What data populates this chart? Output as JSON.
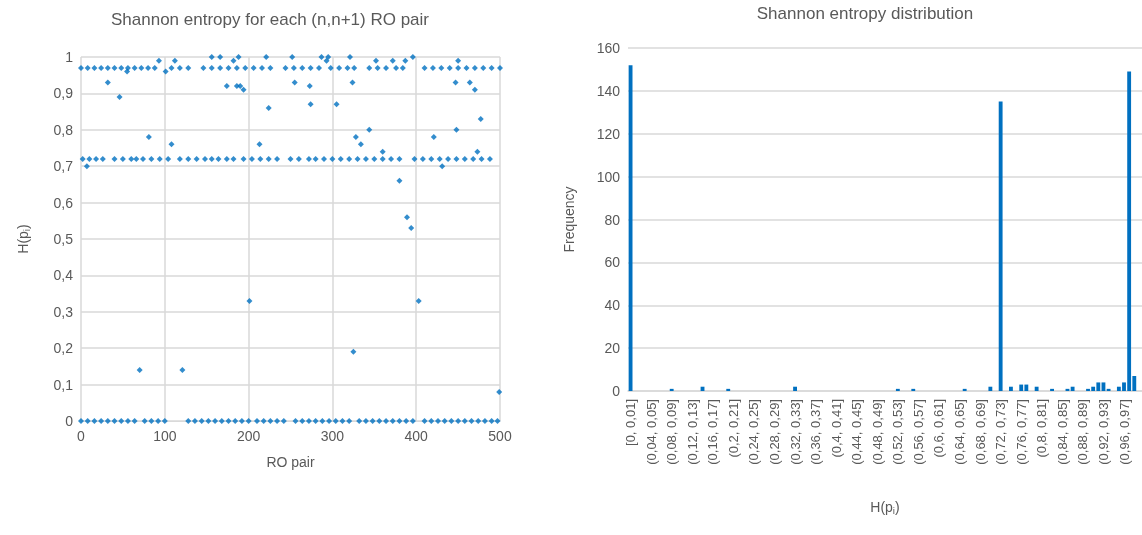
{
  "chart_data": [
    {
      "type": "scatter",
      "title": "Shannon entropy for each (n,n+1) RO pair",
      "xlabel": "RO pair",
      "ylabel": "H(p$_{i}$)",
      "color": "#0070c0",
      "marker": "diamond",
      "grid": true,
      "xlim": [
        0,
        500
      ],
      "xticks": [
        0,
        100,
        200,
        300,
        400,
        500
      ],
      "ylim": [
        0,
        1
      ],
      "yticks": [
        0,
        {
          "value": 0.1,
          "label": "0,1"
        },
        {
          "value": 0.2,
          "label": "0,2"
        },
        {
          "value": 0.3,
          "label": "0,3"
        },
        {
          "value": 0.4,
          "label": "0,4"
        },
        {
          "value": 0.5,
          "label": "0,5"
        },
        {
          "value": 0.6,
          "label": "0,6"
        },
        {
          "value": 0.7,
          "label": "0,7"
        },
        {
          "value": 0.8,
          "label": "0,8"
        },
        {
          "value": 0.9,
          "label": "0,9"
        },
        1
      ],
      "x": [
        2,
        10,
        18,
        26,
        40,
        50,
        60,
        66,
        74,
        84,
        94,
        104,
        118,
        128,
        138,
        148,
        156,
        164,
        174,
        182,
        194,
        204,
        214,
        224,
        234,
        250,
        260,
        272,
        280,
        290,
        300,
        310,
        320,
        330,
        340,
        350,
        360,
        370,
        380,
        398,
        408,
        418,
        428,
        438,
        448,
        458,
        468,
        478,
        488,
        0,
        8,
        16,
        24,
        32,
        40,
        48,
        56,
        64,
        72,
        80,
        88,
        108,
        118,
        128,
        146,
        156,
        166,
        176,
        186,
        196,
        206,
        216,
        226,
        244,
        254,
        264,
        274,
        284,
        298,
        308,
        318,
        326,
        344,
        354,
        364,
        376,
        384,
        410,
        420,
        430,
        440,
        450,
        460,
        470,
        480,
        490,
        500,
        0,
        8,
        16,
        24,
        32,
        40,
        48,
        56,
        64,
        76,
        84,
        92,
        100,
        128,
        136,
        144,
        152,
        160,
        168,
        176,
        184,
        192,
        200,
        210,
        218,
        226,
        234,
        242,
        256,
        264,
        272,
        280,
        288,
        296,
        304,
        312,
        320,
        332,
        340,
        348,
        356,
        364,
        372,
        380,
        388,
        396,
        410,
        418,
        426,
        434,
        442,
        450,
        458,
        466,
        474,
        482,
        490,
        497,
        32,
        46,
        81,
        93,
        101,
        112,
        108,
        55,
        156,
        166,
        182,
        188,
        174,
        186,
        190,
        194,
        224,
        213,
        221,
        252,
        255,
        273,
        274,
        287,
        295,
        293,
        305,
        321,
        324,
        328,
        334,
        344,
        360,
        352,
        372,
        387,
        396,
        421,
        448,
        450,
        447,
        464,
        470,
        477,
        473,
        7,
        431,
        380,
        389,
        394,
        201,
        403,
        325,
        70,
        121,
        499
      ],
      "values": [
        0.72,
        0.72,
        0.72,
        0.72,
        0.72,
        0.72,
        0.72,
        0.72,
        0.72,
        0.72,
        0.72,
        0.72,
        0.72,
        0.72,
        0.72,
        0.72,
        0.72,
        0.72,
        0.72,
        0.72,
        0.72,
        0.72,
        0.72,
        0.72,
        0.72,
        0.72,
        0.72,
        0.72,
        0.72,
        0.72,
        0.72,
        0.72,
        0.72,
        0.72,
        0.72,
        0.72,
        0.72,
        0.72,
        0.72,
        0.72,
        0.72,
        0.72,
        0.72,
        0.72,
        0.72,
        0.72,
        0.72,
        0.72,
        0.72,
        0.97,
        0.97,
        0.97,
        0.97,
        0.97,
        0.97,
        0.97,
        0.97,
        0.97,
        0.97,
        0.97,
        0.97,
        0.97,
        0.97,
        0.97,
        0.97,
        0.97,
        0.97,
        0.97,
        0.97,
        0.97,
        0.97,
        0.97,
        0.97,
        0.97,
        0.97,
        0.97,
        0.97,
        0.97,
        0.97,
        0.97,
        0.97,
        0.97,
        0.97,
        0.97,
        0.97,
        0.97,
        0.97,
        0.97,
        0.97,
        0.97,
        0.97,
        0.97,
        0.97,
        0.97,
        0.97,
        0.97,
        0.97,
        0,
        0,
        0,
        0,
        0,
        0,
        0,
        0,
        0,
        0,
        0,
        0,
        0,
        0,
        0,
        0,
        0,
        0,
        0,
        0,
        0,
        0,
        0,
        0,
        0,
        0,
        0,
        0,
        0,
        0,
        0,
        0,
        0,
        0,
        0,
        0,
        0,
        0,
        0,
        0,
        0,
        0,
        0,
        0,
        0,
        0,
        0,
        0,
        0,
        0,
        0,
        0,
        0,
        0,
        0,
        0,
        0,
        0,
        0.93,
        0.89,
        0.78,
        0.99,
        0.96,
        0.99,
        0.76,
        0.96,
        1,
        1,
        0.99,
        1,
        0.92,
        0.92,
        0.92,
        0.91,
        0.86,
        0.76,
        1,
        1,
        0.93,
        0.92,
        0.87,
        1,
        1,
        0.99,
        0.87,
        1,
        0.93,
        0.78,
        0.76,
        0.8,
        0.74,
        0.99,
        0.99,
        0.99,
        1,
        0.78,
        0.8,
        0.99,
        0.93,
        0.93,
        0.91,
        0.83,
        0.74,
        0.7,
        0.7,
        0.66,
        0.56,
        0.53,
        0.33,
        0.33,
        0.19,
        0.14,
        0.14,
        0.08
      ]
    },
    {
      "type": "bar",
      "title": "Shannon entropy distribution",
      "xlabel": "H(p$_{i}$)",
      "ylabel": "Frequency",
      "color": "#0070c0",
      "grid": "y",
      "ylim": [
        0,
        160
      ],
      "yticks": [
        0,
        20,
        40,
        60,
        80,
        100,
        120,
        140,
        160
      ],
      "categories": [
        "[0, 0,01]",
        null,
        null,
        null,
        "(0,04, 0,05]",
        null,
        null,
        null,
        "(0,08, 0,09]",
        null,
        null,
        null,
        "(0,12, 0,13]",
        null,
        null,
        null,
        "(0,16, 0,17]",
        null,
        null,
        null,
        "(0,2, 0,21]",
        null,
        null,
        null,
        "(0,24, 0,25]",
        null,
        null,
        null,
        "(0,28, 0,29]",
        null,
        null,
        null,
        "(0,32, 0,33]",
        null,
        null,
        null,
        "(0,36, 0,37]",
        null,
        null,
        null,
        "(0,4, 0,41]",
        null,
        null,
        null,
        "(0,44, 0,45]",
        null,
        null,
        null,
        "(0,48, 0,49]",
        null,
        null,
        null,
        "(0,52, 0,53]",
        null,
        null,
        null,
        "(0,56, 0,57]",
        null,
        null,
        null,
        "(0,6, 0,61]",
        null,
        null,
        null,
        "(0,64, 0,65]",
        null,
        null,
        null,
        "(0,68, 0,69]",
        null,
        null,
        null,
        "(0,72, 0,73]",
        null,
        null,
        null,
        "(0,76, 0,77]",
        null,
        null,
        null,
        "(0,8, 0,81]",
        null,
        null,
        null,
        "(0,84, 0,85]",
        null,
        null,
        null,
        "(0,88, 0,89]",
        null,
        null,
        null,
        "(0,92, 0,93]",
        null,
        null,
        null,
        "(0,96, 0,97]",
        null,
        null,
        null
      ],
      "values": [
        152,
        0,
        0,
        0,
        0,
        0,
        0,
        0,
        1,
        0,
        0,
        0,
        0,
        0,
        2,
        0,
        0,
        0,
        0,
        1,
        0,
        0,
        0,
        0,
        0,
        0,
        0,
        0,
        0,
        0,
        0,
        0,
        2,
        0,
        0,
        0,
        0,
        0,
        0,
        0,
        0,
        0,
        0,
        0,
        0,
        0,
        0,
        0,
        0,
        0,
        0,
        0,
        1,
        0,
        0,
        1,
        0,
        0,
        0,
        0,
        0,
        0,
        0,
        0,
        0,
        1,
        0,
        0,
        0,
        0,
        2,
        0,
        135,
        0,
        2,
        0,
        3,
        3,
        0,
        2,
        0,
        0,
        1,
        0,
        0,
        1,
        2,
        0,
        0,
        1,
        2,
        4,
        4,
        1,
        0,
        2,
        4,
        149,
        7,
        0
      ]
    }
  ]
}
